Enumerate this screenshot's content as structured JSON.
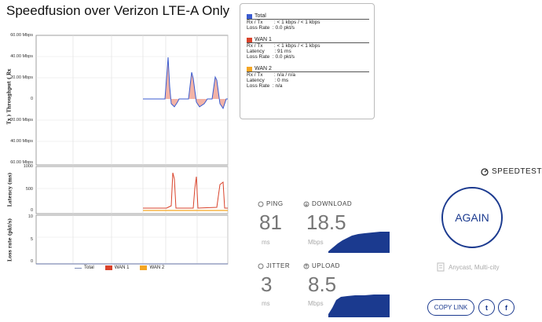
{
  "title": "Speedfusion over Verizon LTE-A Only",
  "graph": {
    "throughput_axis": "Tx ) Throughput ( Rx",
    "throughput_ticks": [
      "60.00 Mbps",
      "40.00 Mbps",
      "20.00 Mbps",
      "0",
      "20.00 Mbps",
      "40.00 Mbps",
      "60.00 Mbps"
    ],
    "latency_axis": "Latency (ms)",
    "latency_ticks": [
      "1000",
      "500",
      "0"
    ],
    "loss_axis": "Loss rate (pkt/s)",
    "loss_ticks": [
      "10",
      "5",
      "0"
    ],
    "legend": [
      {
        "label": "Total",
        "color": "#7b8bb7"
      },
      {
        "label": "WAN 1",
        "color": "#d9432b"
      },
      {
        "label": "WAN 2",
        "color": "#f5a623"
      }
    ]
  },
  "stats": {
    "total": {
      "name": "Total",
      "color": "#3a5bd0",
      "rx_tx": "Rx / Tx        : < 1 kbps / < 1 kbps",
      "loss": "Loss Rate  : 0.0 pkt/s"
    },
    "wan1": {
      "name": "WAN 1",
      "color": "#d9432b",
      "rx_tx": "Rx / Tx        : < 1 kbps / < 1 kbps",
      "latency": "Latency       : 91 ms",
      "loss": "Loss Rate  : 0.0 pkt/s"
    },
    "wan2": {
      "name": "WAN 2",
      "color": "#f5a623",
      "rx_tx": "Rx / Tx        : n/a / n/a",
      "latency": "Latency       : 0 ms",
      "loss": "Loss Rate  : n/a"
    }
  },
  "speedtest": {
    "brand": "SPEEDTEST",
    "ping_label": "PING",
    "ping_value": "81",
    "ping_unit": "ms",
    "download_label": "DOWNLOAD",
    "download_value": "18.5",
    "download_unit": "Mbps",
    "jitter_label": "JITTER",
    "jitter_value": "3",
    "jitter_unit": "ms",
    "upload_label": "UPLOAD",
    "upload_value": "8.5",
    "upload_unit": "Mbps",
    "again_label": "AGAIN",
    "server": "Anycast, Multi-city",
    "copy_link": "COPY LINK",
    "twitter": "t",
    "facebook": "f",
    "accent": "#1b3a8f"
  }
}
